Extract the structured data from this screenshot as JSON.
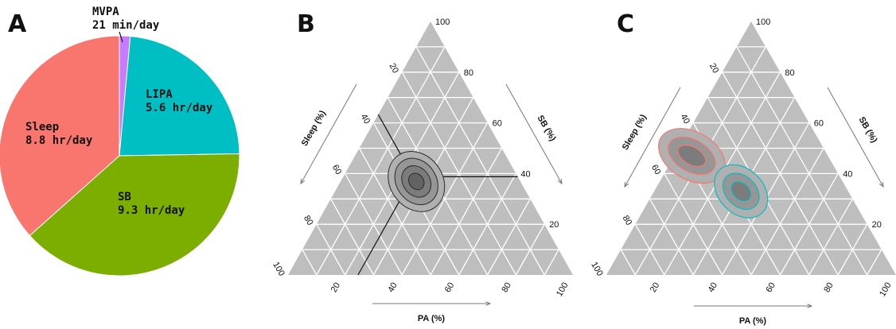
{
  "panels": {
    "A": "A",
    "B": "B",
    "C": "C"
  },
  "chart_data": [
    {
      "type": "pie",
      "panel": "A",
      "slices": [
        {
          "label": "MVPA",
          "value_text": "21 min/day",
          "value_hours": 0.35,
          "color": "#c77cff"
        },
        {
          "label": "LIPA",
          "value_text": "5.6 hr/day",
          "value_hours": 5.6,
          "color": "#00bfc4"
        },
        {
          "label": "SB",
          "value_text": "9.3 hr/day",
          "value_hours": 9.3,
          "color": "#7cae00"
        },
        {
          "label": "Sleep",
          "value_text": "8.8 hr/day",
          "value_hours": 8.8,
          "color": "#f8766d"
        }
      ]
    },
    {
      "type": "ternary",
      "panel": "B",
      "axes": {
        "sb": {
          "label": "SB (%)",
          "ticks": [
            "20",
            "40",
            "60",
            "80",
            "100"
          ]
        },
        "sleep": {
          "label": "Sleep (%)",
          "ticks": [
            "20",
            "40",
            "60",
            "80",
            "100"
          ]
        },
        "pa": {
          "label": "PA (%)",
          "ticks": [
            "20",
            "40",
            "60",
            "80",
            "100"
          ]
        }
      },
      "grid": true,
      "background": "#bebebe",
      "reference_point": {
        "sb": 38.75,
        "sleep": 36.7,
        "pa": 24.55
      },
      "density_levels": [
        {
          "level": "outer",
          "sb": 38.75,
          "sleep": 36.7,
          "pa": 24.55,
          "fill": "#b0b0b0",
          "stroke": "#2b2b2b"
        },
        {
          "level": "mid",
          "sb": 38.75,
          "sleep": 36.7,
          "pa": 24.55,
          "fill": "#969696",
          "stroke": "#2b2b2b"
        },
        {
          "level": "inner",
          "sb": 38.75,
          "sleep": 36.7,
          "pa": 24.55,
          "fill": "#7c7c7c",
          "stroke": "#2b2b2b"
        },
        {
          "level": "core",
          "sb": 38.75,
          "sleep": 36.7,
          "pa": 24.55,
          "fill": "#636363",
          "stroke": "#2b2b2b"
        }
      ]
    },
    {
      "type": "ternary",
      "panel": "C",
      "axes": {
        "sb": {
          "label": "SB (%)",
          "ticks": [
            "20",
            "40",
            "60",
            "80",
            "100"
          ]
        },
        "sleep": {
          "label": "Sleep (%)",
          "ticks": [
            "20",
            "40",
            "60",
            "80",
            "100"
          ]
        },
        "pa": {
          "label": "PA (%)",
          "ticks": [
            "20",
            "40",
            "60",
            "80",
            "100"
          ]
        }
      },
      "grid": true,
      "background": "#bebebe",
      "groups": [
        {
          "color": "#f8766d",
          "sb": 47,
          "sleep": 47,
          "pa": 6
        },
        {
          "color": "#00bfc4",
          "sb": 33,
          "sleep": 37,
          "pa": 30
        }
      ]
    }
  ]
}
